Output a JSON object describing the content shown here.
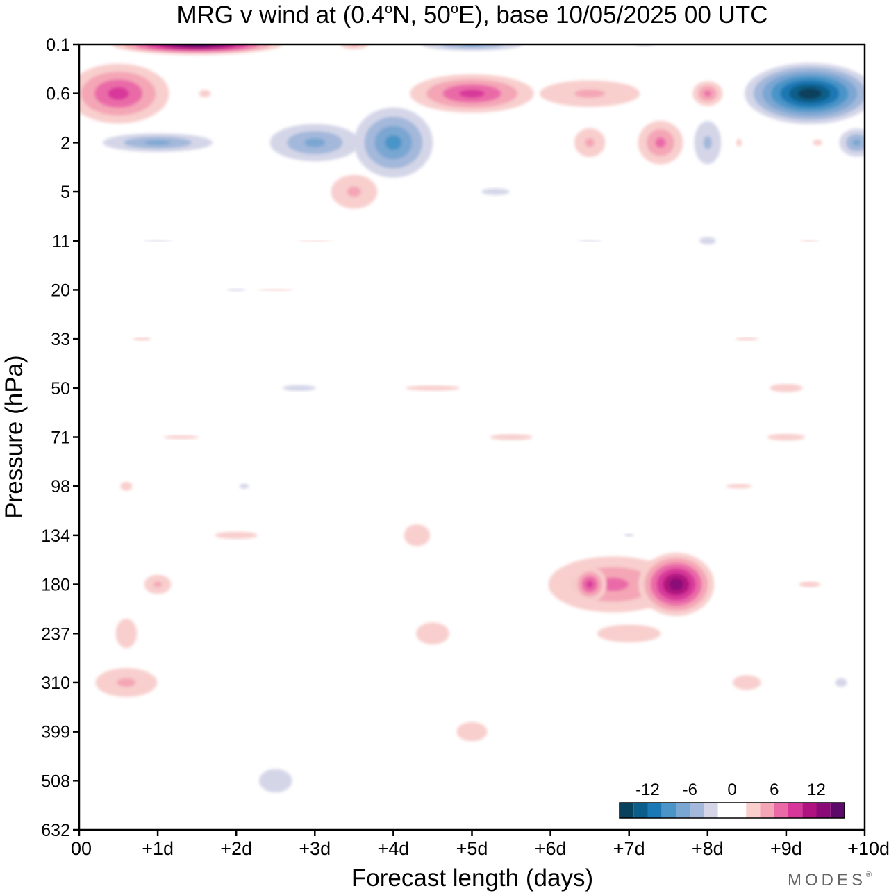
{
  "chart_data": {
    "type": "heatmap",
    "title": "MRG v wind at (0.4°N, 50°E),  base 10/05/2025  00 UTC",
    "title_parts": {
      "prefix": "MRG v wind at (0.4",
      "deg1": "o",
      "mid": "N, 50",
      "deg2": "o",
      "suffix": "E),  base 10/05/2025  00 UTC"
    },
    "xlabel": "Forecast length (days)",
    "ylabel": "Pressure (hPa)",
    "x_ticks": [
      {
        "v": 0,
        "label": "00"
      },
      {
        "v": 1,
        "label": "+1d"
      },
      {
        "v": 2,
        "label": "+2d"
      },
      {
        "v": 3,
        "label": "+3d"
      },
      {
        "v": 4,
        "label": "+4d"
      },
      {
        "v": 5,
        "label": "+5d"
      },
      {
        "v": 6,
        "label": "+6d"
      },
      {
        "v": 7,
        "label": "+7d"
      },
      {
        "v": 8,
        "label": "+8d"
      },
      {
        "v": 9,
        "label": "+9d"
      },
      {
        "v": 10,
        "label": "+10d"
      }
    ],
    "y_ticks": [
      "0.1",
      "0.6",
      "2",
      "5",
      "11",
      "20",
      "33",
      "50",
      "71",
      "98",
      "134",
      "180",
      "237",
      "310",
      "399",
      "508",
      "632"
    ],
    "xlim": [
      0,
      10
    ],
    "grid": false,
    "colorbar": {
      "tick_labels": [
        {
          "v": -12,
          "label": "-12"
        },
        {
          "v": -6,
          "label": "-6"
        },
        {
          "v": 0,
          "label": "0"
        },
        {
          "v": 6,
          "label": "6"
        },
        {
          "v": 12,
          "label": "12"
        }
      ],
      "bins": [
        {
          "range": [
            -16,
            -14
          ],
          "color": "#08415c"
        },
        {
          "range": [
            -14,
            -12
          ],
          "color": "#0c5e8a"
        },
        {
          "range": [
            -12,
            -10
          ],
          "color": "#1a78b4"
        },
        {
          "range": [
            -10,
            -8
          ],
          "color": "#4a94c8"
        },
        {
          "range": [
            -8,
            -6
          ],
          "color": "#7aa6d2"
        },
        {
          "range": [
            -6,
            -4
          ],
          "color": "#a3b8da"
        },
        {
          "range": [
            -4,
            -2
          ],
          "color": "#d4d6e8"
        },
        {
          "range": [
            -2,
            2
          ],
          "color": "#ffffff"
        },
        {
          "range": [
            2,
            4
          ],
          "color": "#f8cfcd"
        },
        {
          "range": [
            4,
            6
          ],
          "color": "#f4a6b6"
        },
        {
          "range": [
            6,
            8
          ],
          "color": "#ea6aa8"
        },
        {
          "range": [
            8,
            10
          ],
          "color": "#d8379a"
        },
        {
          "range": [
            10,
            12
          ],
          "color": "#b0127f"
        },
        {
          "range": [
            12,
            14
          ],
          "color": "#8a0a78"
        },
        {
          "range": [
            14,
            16
          ],
          "color": "#5c0a6a"
        }
      ],
      "placement": "bottom-right"
    },
    "blobs": [
      {
        "x": 1.5,
        "p": "0.1",
        "v": 15,
        "rx": 1.3,
        "ry": 0.25
      },
      {
        "x": 3.5,
        "p": "0.1",
        "v": 5,
        "rx": 0.35,
        "ry": 0.2
      },
      {
        "x": 0.5,
        "p": "0.6",
        "v": 9,
        "rx": 0.9,
        "ry": 0.85
      },
      {
        "x": 1.0,
        "p": "2",
        "v": -7,
        "rx": 1.1,
        "ry": 0.3
      },
      {
        "x": 1.6,
        "p": "0.6",
        "v": 4,
        "rx": 0.5,
        "ry": 0.5
      },
      {
        "x": 3.0,
        "p": "2",
        "v": -7,
        "rx": 0.9,
        "ry": 0.6
      },
      {
        "x": 4.0,
        "p": "2",
        "v": -9,
        "rx": 0.7,
        "ry": 1.0
      },
      {
        "x": 3.5,
        "p": "5",
        "v": 5,
        "rx": 0.6,
        "ry": 0.7
      },
      {
        "x": 5.0,
        "p": "0.1",
        "v": -7,
        "rx": 1.0,
        "ry": 0.2
      },
      {
        "x": 5.0,
        "p": "0.6",
        "v": 9,
        "rx": 1.1,
        "ry": 0.55
      },
      {
        "x": 6.5,
        "p": "0.6",
        "v": 5,
        "rx": 1.3,
        "ry": 0.55
      },
      {
        "x": 7.2,
        "p": "0.1",
        "v": -3,
        "rx": 0.8,
        "ry": 0.2
      },
      {
        "x": 8.0,
        "p": "0.6",
        "v": 8,
        "rx": 0.3,
        "ry": 0.4
      },
      {
        "x": 9.3,
        "p": "0.6",
        "v": -15,
        "rx": 1.0,
        "ry": 0.75
      },
      {
        "x": 9.9,
        "p": "2",
        "v": -8,
        "rx": 0.35,
        "ry": 0.45
      },
      {
        "x": 5.3,
        "p": "5",
        "v": -4,
        "rx": 1.2,
        "ry": 0.45
      },
      {
        "x": 6.5,
        "p": "2",
        "v": 5,
        "rx": 0.4,
        "ry": 0.6
      },
      {
        "x": 7.4,
        "p": "2",
        "v": 7,
        "rx": 0.45,
        "ry": 0.7
      },
      {
        "x": 8.0,
        "p": "2",
        "v": -5,
        "rx": 0.35,
        "ry": 0.9
      },
      {
        "x": 8.4,
        "p": "2",
        "v": 4,
        "rx": 0.25,
        "ry": 0.5
      },
      {
        "x": 9.4,
        "p": "2",
        "v": 4,
        "rx": 0.4,
        "ry": 0.4
      },
      {
        "x": 8.0,
        "p": "11",
        "v": -4,
        "rx": 0.7,
        "ry": 0.5
      },
      {
        "x": 1.0,
        "p": "11",
        "v": -3,
        "rx": 1.2,
        "ry": 0.12
      },
      {
        "x": 3.0,
        "p": "11",
        "v": 3,
        "rx": 1.5,
        "ry": 0.1
      },
      {
        "x": 6.5,
        "p": "11",
        "v": -3,
        "rx": 1.0,
        "ry": 0.12
      },
      {
        "x": 9.3,
        "p": "11",
        "v": 3,
        "rx": 0.8,
        "ry": 0.12
      },
      {
        "x": 2.0,
        "p": "20",
        "v": -3,
        "rx": 0.8,
        "ry": 0.15
      },
      {
        "x": 2.5,
        "p": "20",
        "v": 3,
        "rx": 1.5,
        "ry": 0.12
      },
      {
        "x": 0.8,
        "p": "33",
        "v": 3,
        "rx": 0.8,
        "ry": 0.2
      },
      {
        "x": 8.5,
        "p": "33",
        "v": 3,
        "rx": 1.0,
        "ry": 0.2
      },
      {
        "x": 2.8,
        "p": "50",
        "v": -4,
        "rx": 1.4,
        "ry": 0.4
      },
      {
        "x": 4.5,
        "p": "50",
        "v": 3,
        "rx": 2.3,
        "ry": 0.35
      },
      {
        "x": 5.5,
        "p": "71",
        "v": 4,
        "rx": 1.8,
        "ry": 0.4
      },
      {
        "x": 9.0,
        "p": "50",
        "v": 4,
        "rx": 1.4,
        "ry": 0.55
      },
      {
        "x": 9.0,
        "p": "71",
        "v": 3,
        "rx": 1.6,
        "ry": 0.45
      },
      {
        "x": 8.4,
        "p": "98",
        "v": 4,
        "rx": 1.1,
        "ry": 0.3
      },
      {
        "x": 1.3,
        "p": "71",
        "v": 3,
        "rx": 1.5,
        "ry": 0.25
      },
      {
        "x": 2.1,
        "p": "98",
        "v": -3,
        "rx": 0.4,
        "ry": 0.35
      },
      {
        "x": 7.0,
        "p": "134",
        "v": -3,
        "rx": 0.4,
        "ry": 0.2
      },
      {
        "x": 0.6,
        "p": "98",
        "v": 3,
        "rx": 0.5,
        "ry": 0.6
      },
      {
        "x": 2.0,
        "p": "134",
        "v": 3,
        "rx": 1.8,
        "ry": 0.5
      },
      {
        "x": 4.3,
        "p": "134",
        "v": 3,
        "rx": 1.1,
        "ry": 1.5
      },
      {
        "x": 4.5,
        "p": "237",
        "v": 3,
        "rx": 1.4,
        "ry": 1.5
      },
      {
        "x": 5.0,
        "p": "399",
        "v": 3,
        "rx": 1.3,
        "ry": 1.3
      },
      {
        "x": 0.6,
        "p": "237",
        "v": 3,
        "rx": 0.9,
        "ry": 2.0
      },
      {
        "x": 0.6,
        "p": "310",
        "v": 6,
        "rx": 0.8,
        "ry": 0.6
      },
      {
        "x": 1.0,
        "p": "180",
        "v": 5,
        "rx": 0.35,
        "ry": 0.4
      },
      {
        "x": 2.5,
        "p": "508",
        "v": -3,
        "rx": 1.4,
        "ry": 1.6
      },
      {
        "x": 7.0,
        "p": "237",
        "v": 4,
        "rx": 2.7,
        "ry": 1.2
      },
      {
        "x": 8.5,
        "p": "310",
        "v": 3,
        "rx": 1.2,
        "ry": 1.0
      },
      {
        "x": 6.8,
        "p": "180",
        "v": 8,
        "rx": 1.3,
        "ry": 0.9
      },
      {
        "x": 6.5,
        "p": "180",
        "v": 10,
        "rx": 0.3,
        "ry": 0.5
      },
      {
        "x": 7.6,
        "p": "180",
        "v": 14,
        "rx": 0.6,
        "ry": 0.8
      },
      {
        "x": 9.3,
        "p": "180",
        "v": 4,
        "rx": 0.9,
        "ry": 0.4
      },
      {
        "x": 9.7,
        "p": "310",
        "v": -3,
        "rx": 0.5,
        "ry": 0.6
      }
    ]
  },
  "logo": {
    "text": "MODES",
    "mark": "®"
  }
}
